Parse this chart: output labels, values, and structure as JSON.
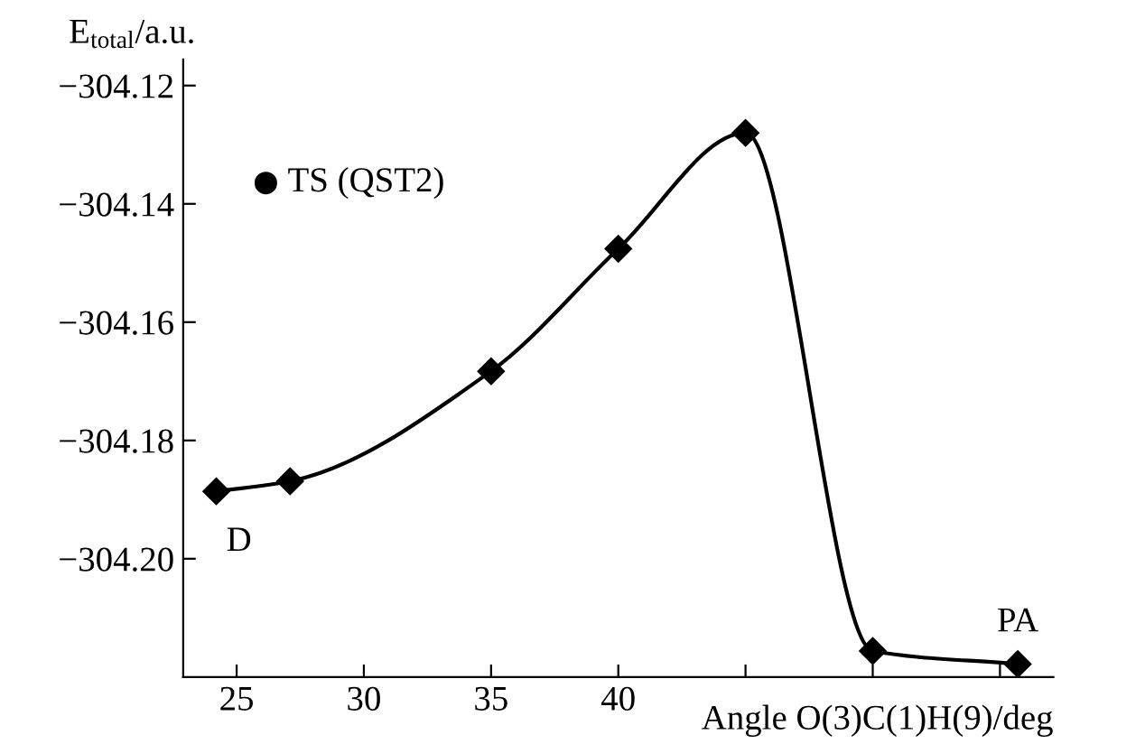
{
  "chart_data": {
    "type": "line",
    "ylabel": "E$_{total}$/a.u.",
    "xlabel": "Angle O(3)C(1)H(9)/deg",
    "series": [
      {
        "color": "#000000",
        "x": [
          24.2,
          27.1,
          35,
          40,
          45,
          50,
          55.7
        ],
        "values": [
          -304.1886,
          -304.1869,
          -304.1683,
          -304.1476,
          -304.128,
          -304.2156,
          -304.2178
        ]
      }
    ],
    "marker": "diamond",
    "line_style": "solid",
    "grid": false,
    "legend": false,
    "xlim": [
      22.9,
      57.1
    ],
    "xticks": [
      25,
      30,
      35,
      40,
      {
        "value": 45,
        "label": null
      },
      {
        "value": 50,
        "label": null
      },
      {
        "value": 55,
        "label": null
      }
    ],
    "ylim": [
      -304.22,
      -304.1156
    ],
    "yticks": [
      {
        "value": -304.12,
        "label": "−304.12"
      },
      {
        "value": -304.14,
        "label": "−304.14"
      },
      {
        "value": -304.16,
        "label": "−304.16"
      },
      {
        "value": -304.18,
        "label": "−304.18"
      },
      {
        "value": -304.2,
        "label": "−304.20"
      }
    ],
    "annotations": [
      {
        "text": "D",
        "x": 24.2,
        "y": -304.1886
      },
      {
        "text": "PA",
        "x": 55.7,
        "y": -304.2178
      },
      "TS (QST2)"
    ]
  }
}
